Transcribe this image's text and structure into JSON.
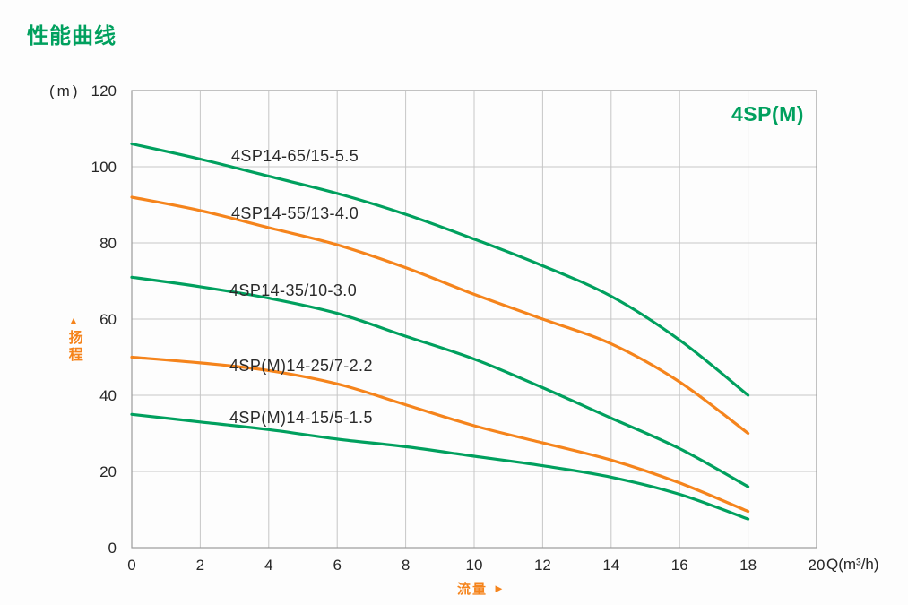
{
  "header": {
    "title": "性能曲线",
    "family": "4SP(M)"
  },
  "colors": {
    "green": "#00A05E",
    "orange": "#F5841C",
    "grid": "#C6C6C6",
    "border": "#9B9B9B",
    "tick_text": "#262626",
    "label_text": "#2A2A2A"
  },
  "chart_data": {
    "type": "line",
    "title": "性能曲线",
    "x_axis": {
      "title": "流量",
      "unit": "Q(m³/h)",
      "min": 0,
      "max": 20,
      "ticks": [
        0,
        2,
        4,
        6,
        8,
        10,
        12,
        14,
        16,
        18,
        20
      ]
    },
    "y_axis": {
      "title": "扬程",
      "unit": "(m)",
      "min": 0,
      "max": 120,
      "ticks": [
        0,
        20,
        40,
        60,
        80,
        100,
        120
      ]
    },
    "grid": true,
    "legend_position": "inline-curve-labels",
    "series": [
      {
        "label": "4SP14-65/15-5.5",
        "color": "#00A05E",
        "points": [
          [
            0,
            106
          ],
          [
            2,
            102
          ],
          [
            4,
            97.5
          ],
          [
            6,
            93
          ],
          [
            8,
            87.5
          ],
          [
            10,
            81
          ],
          [
            12,
            74
          ],
          [
            14,
            66
          ],
          [
            16,
            54.5
          ],
          [
            18,
            40
          ]
        ]
      },
      {
        "label": "4SP14-55/13-4.0",
        "color": "#F5841C",
        "points": [
          [
            0,
            92
          ],
          [
            2,
            88.5
          ],
          [
            4,
            84
          ],
          [
            6,
            79.5
          ],
          [
            8,
            73.5
          ],
          [
            10,
            66.5
          ],
          [
            12,
            60
          ],
          [
            14,
            53.5
          ],
          [
            16,
            43.5
          ],
          [
            18,
            30
          ]
        ]
      },
      {
        "label": "4SP14-35/10-3.0",
        "color": "#00A05E",
        "points": [
          [
            0,
            71
          ],
          [
            2,
            68.5
          ],
          [
            4,
            65.5
          ],
          [
            6,
            61.5
          ],
          [
            8,
            55.5
          ],
          [
            10,
            49.5
          ],
          [
            12,
            42
          ],
          [
            14,
            34
          ],
          [
            16,
            26
          ],
          [
            18,
            16
          ]
        ]
      },
      {
        "label": "4SP(M)14-25/7-2.2",
        "color": "#F5841C",
        "points": [
          [
            0,
            50
          ],
          [
            2,
            48.5
          ],
          [
            4,
            46.5
          ],
          [
            6,
            43
          ],
          [
            8,
            37.5
          ],
          [
            10,
            32
          ],
          [
            12,
            27.5
          ],
          [
            14,
            23
          ],
          [
            16,
            17
          ],
          [
            18,
            9.5
          ]
        ]
      },
      {
        "label": "4SP(M)14-15/5-1.5",
        "color": "#00A05E",
        "points": [
          [
            0,
            35
          ],
          [
            2,
            33
          ],
          [
            4,
            31
          ],
          [
            6,
            28.5
          ],
          [
            8,
            26.5
          ],
          [
            10,
            24
          ],
          [
            12,
            21.5
          ],
          [
            14,
            18.5
          ],
          [
            16,
            14
          ],
          [
            18,
            7.5
          ]
        ]
      }
    ]
  }
}
